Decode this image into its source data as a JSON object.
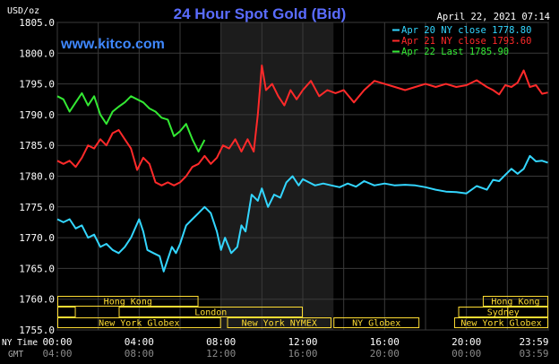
{
  "chart_data": {
    "type": "line",
    "title": "24 Hour Spot Gold (Bid)",
    "website": "www.kitco.com",
    "yunit": "USD/oz",
    "timestamp": "April 22, 2021 07:14",
    "ylim": [
      1755,
      1805
    ],
    "yticks": [
      "1805.0",
      "1800.0",
      "1795.0",
      "1790.0",
      "1785.0",
      "1780.0",
      "1775.0",
      "1770.0",
      "1765.0",
      "1760.0",
      "1755.0"
    ],
    "x_axis": {
      "row_labels": [
        "NY Time",
        "GMT"
      ],
      "ny_ticks": [
        "00:00",
        "04:00",
        "08:00",
        "12:00",
        "16:00",
        "20:00",
        "23:59"
      ],
      "gmt_ticks": [
        "04:00",
        "08:00",
        "12:00",
        "16:00",
        "20:00",
        "00:00",
        "03:59"
      ],
      "range_hours": [
        0,
        24
      ]
    },
    "grid": true,
    "legend_position": "top-right",
    "colors": {
      "background": "#000000",
      "grid": "#3a3a3a",
      "text": "#ffffff",
      "title": "#5a6cff",
      "website": "#3f88ff",
      "band": "#1c1c1c",
      "market_box": "#ffdd33"
    },
    "series": [
      {
        "name": "Apr 20",
        "label": "Apr 20 NY close 1778.80",
        "color": "#33d6ff",
        "x": [
          0,
          0.3,
          0.6,
          0.9,
          1.2,
          1.5,
          1.8,
          2.1,
          2.4,
          2.7,
          3.0,
          3.3,
          3.6,
          4.0,
          4.2,
          4.4,
          4.7,
          5.0,
          5.2,
          5.4,
          5.6,
          5.8,
          6.0,
          6.3,
          6.6,
          6.9,
          7.2,
          7.5,
          7.8,
          8.0,
          8.2,
          8.5,
          8.8,
          9.0,
          9.2,
          9.5,
          9.8,
          10.0,
          10.3,
          10.6,
          10.9,
          11.2,
          11.5,
          11.8,
          12.0,
          12.3,
          12.6,
          13.0,
          13.4,
          13.8,
          14.2,
          14.6,
          15.0,
          15.5,
          16.0,
          16.5,
          17.0,
          17.5,
          18.0,
          18.5,
          19.0,
          19.5,
          20.0,
          20.5,
          21.0,
          21.3,
          21.6,
          21.9,
          22.2,
          22.5,
          22.8,
          23.1,
          23.4,
          23.7,
          23.98
        ],
        "values": [
          1773,
          1772.5,
          1773,
          1771.5,
          1772,
          1770,
          1770.5,
          1768.5,
          1769,
          1768,
          1767.5,
          1768.5,
          1770,
          1773,
          1771,
          1768,
          1767.5,
          1767,
          1764.5,
          1766.5,
          1768.5,
          1767.5,
          1769,
          1772,
          1773,
          1774,
          1775,
          1774,
          1771,
          1768,
          1770,
          1767.5,
          1768.5,
          1772,
          1771,
          1777,
          1776,
          1778,
          1775,
          1777,
          1776.5,
          1779,
          1780,
          1778.5,
          1779.5,
          1779,
          1778.5,
          1778.8,
          1778.5,
          1778.2,
          1778.8,
          1778.3,
          1779.2,
          1778.5,
          1778.8,
          1778.5,
          1778.6,
          1778.5,
          1778.2,
          1777.8,
          1777.5,
          1777.4,
          1777.2,
          1778.4,
          1777.8,
          1779.4,
          1779.2,
          1780.2,
          1781.2,
          1780.4,
          1781.2,
          1783.3,
          1782.4,
          1782.5,
          1782.2
        ]
      },
      {
        "name": "Apr 21",
        "label": "Apr 21 NY close 1793.60",
        "color": "#ff2a2a",
        "x": [
          0,
          0.3,
          0.6,
          0.9,
          1.2,
          1.5,
          1.8,
          2.1,
          2.4,
          2.7,
          3.0,
          3.3,
          3.6,
          3.9,
          4.2,
          4.5,
          4.8,
          5.1,
          5.4,
          5.7,
          6.0,
          6.3,
          6.6,
          6.9,
          7.2,
          7.5,
          7.8,
          8.1,
          8.4,
          8.7,
          9.0,
          9.3,
          9.6,
          9.8,
          10.0,
          10.2,
          10.5,
          10.8,
          11.1,
          11.4,
          11.7,
          12.0,
          12.4,
          12.8,
          13.2,
          13.6,
          14.0,
          14.5,
          15.0,
          15.5,
          16.0,
          16.5,
          17.0,
          17.5,
          18.0,
          18.5,
          19.0,
          19.5,
          20.0,
          20.5,
          21.0,
          21.3,
          21.6,
          21.9,
          22.2,
          22.5,
          22.8,
          23.1,
          23.4,
          23.7,
          23.98
        ],
        "values": [
          1782.5,
          1782,
          1782.5,
          1781.5,
          1783,
          1785,
          1784.5,
          1786,
          1785,
          1787,
          1787.5,
          1786,
          1784.5,
          1781,
          1783,
          1782,
          1779,
          1778.5,
          1779,
          1778.5,
          1779,
          1780,
          1781.5,
          1782,
          1783.3,
          1782,
          1783,
          1785,
          1784.5,
          1786,
          1784,
          1786,
          1784,
          1790,
          1798,
          1794,
          1795,
          1793,
          1791.5,
          1794,
          1792.5,
          1794,
          1795.5,
          1793,
          1794,
          1793.5,
          1794,
          1792,
          1794,
          1795.5,
          1795,
          1794.5,
          1794,
          1794.5,
          1795,
          1794.5,
          1795,
          1794.5,
          1794.8,
          1795.6,
          1794.5,
          1794,
          1793.3,
          1794.8,
          1794.5,
          1795.2,
          1797.2,
          1794.5,
          1794.8,
          1793.4,
          1793.6
        ]
      },
      {
        "name": "Apr 22",
        "label": "Apr 22 Last 1785.90",
        "color": "#33e833",
        "x": [
          0,
          0.3,
          0.6,
          0.9,
          1.2,
          1.5,
          1.8,
          2.1,
          2.4,
          2.7,
          3.0,
          3.3,
          3.6,
          3.9,
          4.2,
          4.5,
          4.8,
          5.1,
          5.4,
          5.7,
          6.0,
          6.3,
          6.6,
          6.9,
          7.2
        ],
        "values": [
          1793,
          1792.5,
          1790.5,
          1792,
          1793.5,
          1791.5,
          1793,
          1790,
          1788.5,
          1790.5,
          1791.3,
          1792,
          1793,
          1792.5,
          1792,
          1791,
          1790.5,
          1789.5,
          1789.2,
          1786.5,
          1787.3,
          1788.5,
          1786,
          1784,
          1785.9
        ]
      }
    ],
    "annotations": {
      "shaded_band": [
        8,
        13.5
      ],
      "market_sessions": [
        {
          "label": "Hong Kong",
          "row": 0,
          "start": 0,
          "end": 6.9
        },
        {
          "label": "Hong Kong",
          "row": 0,
          "start": 20.8,
          "end": 24
        },
        {
          "label": "London",
          "row": 1,
          "start": 3,
          "end": 12
        },
        {
          "label": "",
          "row": 1,
          "start": 0,
          "end": 0.9
        },
        {
          "label": "",
          "row": 1,
          "start": 22,
          "end": 24
        },
        {
          "label": "Sydney",
          "row": 1,
          "start": 19.6,
          "end": 24
        },
        {
          "label": "New York Globex",
          "row": 2,
          "start": 0,
          "end": 8
        },
        {
          "label": "New York NYMEX",
          "row": 2,
          "start": 8.3,
          "end": 13.4
        },
        {
          "label": "NY Globex",
          "row": 2,
          "start": 13.5,
          "end": 17.7
        },
        {
          "label": "New York Globex",
          "row": 2,
          "start": 19.4,
          "end": 24
        }
      ]
    }
  }
}
